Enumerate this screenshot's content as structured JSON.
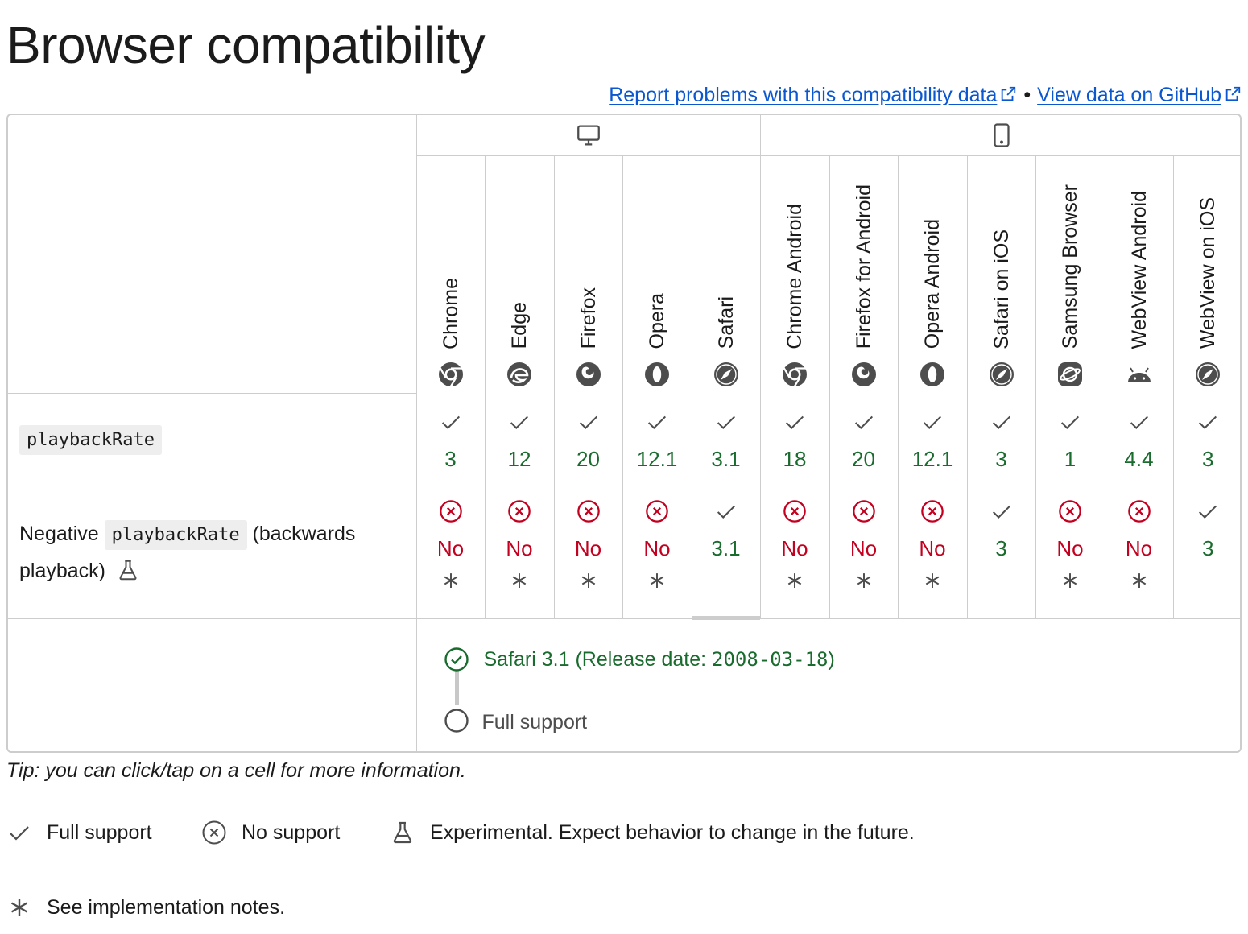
{
  "page": {
    "title": "Browser compatibility",
    "report_link": "Report problems with this compatibility data",
    "github_link": "View data on GitHub",
    "separator": "•"
  },
  "platforms": [
    {
      "name": "desktop",
      "icon": "desktop-icon"
    },
    {
      "name": "mobile",
      "icon": "mobile-icon"
    }
  ],
  "browsers": [
    {
      "name": "Chrome",
      "icon": "chrome-icon"
    },
    {
      "name": "Edge",
      "icon": "edge-icon"
    },
    {
      "name": "Firefox",
      "icon": "firefox-icon"
    },
    {
      "name": "Opera",
      "icon": "opera-icon"
    },
    {
      "name": "Safari",
      "icon": "safari-icon"
    },
    {
      "name": "Chrome Android",
      "icon": "chrome-icon"
    },
    {
      "name": "Firefox for Android",
      "icon": "firefox-icon"
    },
    {
      "name": "Opera Android",
      "icon": "opera-icon"
    },
    {
      "name": "Safari on iOS",
      "icon": "safari-icon"
    },
    {
      "name": "Samsung Browser",
      "icon": "samsung-internet-icon"
    },
    {
      "name": "WebView Android",
      "icon": "android-icon"
    },
    {
      "name": "WebView on iOS",
      "icon": "safari-icon"
    }
  ],
  "features": [
    {
      "name_code": "playbackRate",
      "support": [
        {
          "supported": true,
          "version": "3"
        },
        {
          "supported": true,
          "version": "12"
        },
        {
          "supported": true,
          "version": "20"
        },
        {
          "supported": true,
          "version": "12.1"
        },
        {
          "supported": true,
          "version": "3.1"
        },
        {
          "supported": true,
          "version": "18"
        },
        {
          "supported": true,
          "version": "20"
        },
        {
          "supported": true,
          "version": "12.1"
        },
        {
          "supported": true,
          "version": "3"
        },
        {
          "supported": true,
          "version": "1"
        },
        {
          "supported": true,
          "version": "4.4"
        },
        {
          "supported": true,
          "version": "3"
        }
      ]
    },
    {
      "name_prefix": "Negative",
      "name_code": "playbackRate",
      "name_suffix": "(backwards playback)",
      "experimental": true,
      "support": [
        {
          "supported": false,
          "version": "No",
          "notes": true
        },
        {
          "supported": false,
          "version": "No",
          "notes": true
        },
        {
          "supported": false,
          "version": "No",
          "notes": true
        },
        {
          "supported": false,
          "version": "No",
          "notes": true
        },
        {
          "supported": true,
          "version": "3.1",
          "notes": false
        },
        {
          "supported": false,
          "version": "No",
          "notes": true
        },
        {
          "supported": false,
          "version": "No",
          "notes": true
        },
        {
          "supported": false,
          "version": "No",
          "notes": true
        },
        {
          "supported": true,
          "version": "3",
          "notes": false
        },
        {
          "supported": false,
          "version": "No",
          "notes": true
        },
        {
          "supported": false,
          "version": "No",
          "notes": true
        },
        {
          "supported": true,
          "version": "3",
          "notes": false
        }
      ]
    }
  ],
  "detail": {
    "release_text": "Safari 3.1 (Release date: ",
    "release_date": "2008-03-18",
    "release_close": ")",
    "status": "Full support"
  },
  "tip": "Tip: you can click/tap on a cell for more information.",
  "legend": {
    "full_support": "Full support",
    "no_support": "No support",
    "experimental": "Experimental. Expect behavior to change in the future.",
    "notes": "See implementation notes."
  },
  "colors": {
    "yes": "#1a6b2e",
    "no": "#c3001f",
    "link": "#0b57d0",
    "border": "#cdcdcd"
  }
}
